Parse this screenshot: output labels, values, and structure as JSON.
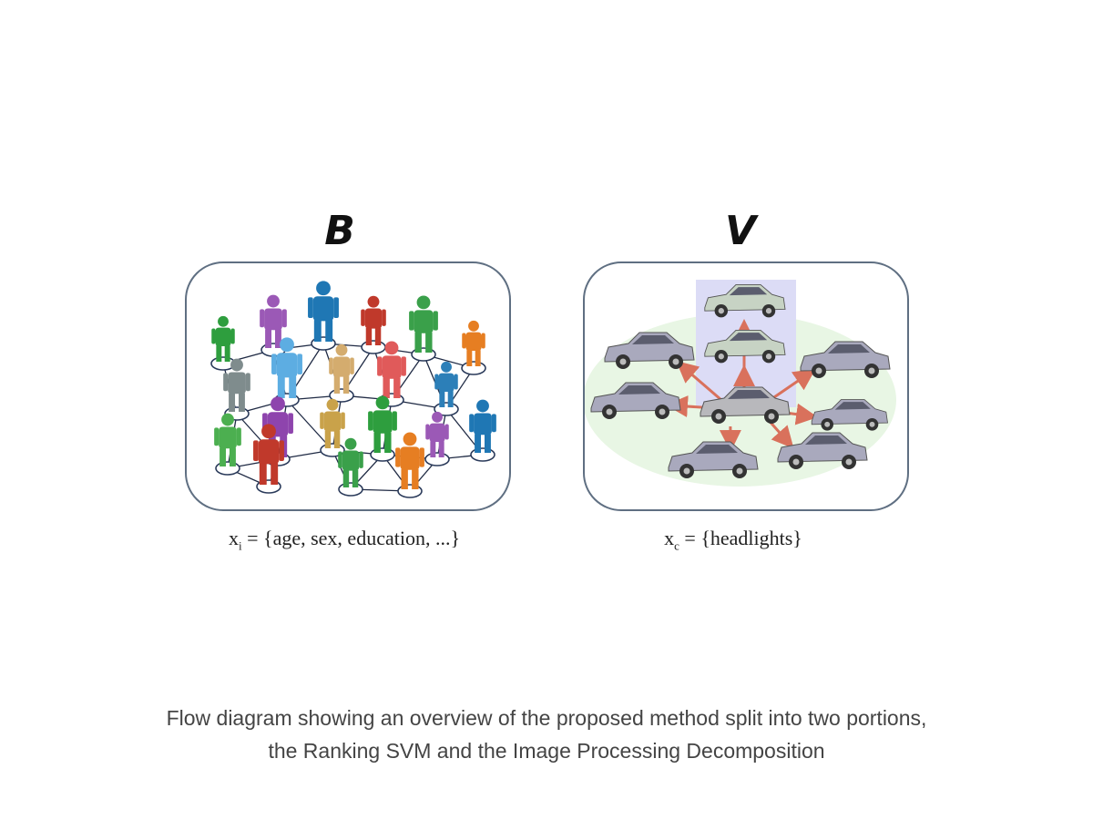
{
  "panels": {
    "people": {
      "letter": "B",
      "formula_var": "x",
      "formula_sub": "i",
      "formula_text": " = {age, sex, education, ...}",
      "figure_colors": [
        "#2e9e3e",
        "#9b59b6",
        "#1f77b4",
        "#c0392b",
        "#3aa04a",
        "#e67e22",
        "#7f8c8d",
        "#5dade2",
        "#d4ac6e",
        "#e05a5a",
        "#2c7fb8",
        "#4caf50",
        "#8e44ad",
        "#c9a24a"
      ]
    },
    "vehicles": {
      "letter": "V",
      "formula_var": "x",
      "formula_sub": "c",
      "formula_text": " = {headlights}",
      "car_color": "#a9a9bd",
      "arrow_color": "#d9715c"
    }
  },
  "caption": {
    "line1": "Flow diagram showing an overview of the proposed method split into two portions,",
    "line2": "the Ranking SVM and the Image Processing Decomposition"
  }
}
